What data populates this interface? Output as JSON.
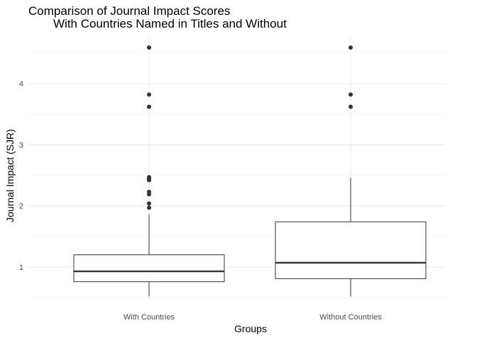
{
  "chart_data": {
    "type": "boxplot",
    "title": "Comparison of Journal Impact Scores",
    "subtitle": "With Countries Named in Titles and Without",
    "xlabel": "Groups",
    "ylabel": "Journal Impact (SJR)",
    "ylim": [
      0.5,
      4.65
    ],
    "yticks": [
      1,
      2,
      3,
      4
    ],
    "grid": true,
    "categories": [
      "With Countries",
      "Without Countries"
    ],
    "boxes": [
      {
        "category": "With Countries",
        "whisker_low": 0.52,
        "q1": 0.76,
        "median": 0.93,
        "q3": 1.2,
        "whisker_high": 1.86,
        "outliers": [
          1.97,
          2.04,
          2.19,
          2.23,
          2.42,
          2.44,
          2.47,
          3.62,
          3.82,
          4.59
        ]
      },
      {
        "category": "Without Countries",
        "whisker_low": 0.52,
        "q1": 0.81,
        "median": 1.07,
        "q3": 1.74,
        "whisker_high": 2.46,
        "outliers": [
          3.62,
          3.82,
          4.59
        ]
      }
    ]
  }
}
